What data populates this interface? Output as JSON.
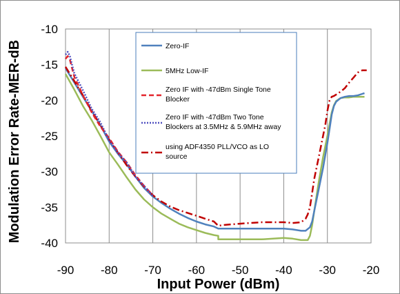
{
  "chart_data": {
    "type": "line",
    "xlabel": "Input Power (dBm)",
    "ylabel": "Modulation Error Rate-MER-dB",
    "xlim": [
      -90,
      -20
    ],
    "ylim": [
      -40,
      -10
    ],
    "x_ticks": [
      "-90",
      "-80",
      "-70",
      "-60",
      "-50",
      "-40",
      "-30",
      "-20"
    ],
    "y_ticks": [
      "-10",
      "-15",
      "-20",
      "-25",
      "-30",
      "-35",
      "-40"
    ],
    "x_tick_values": [
      -90,
      -80,
      -70,
      -60,
      -50,
      -40,
      -30,
      -20
    ],
    "y_tick_values": [
      -10,
      -15,
      -20,
      -25,
      -30,
      -35,
      -40
    ],
    "grid": "vertical",
    "legend_position": "top-center",
    "series": [
      {
        "name": "Zero-IF",
        "color": "#4f81bd",
        "dash": "solid",
        "legend_lines": [
          "Zero-IF"
        ],
        "x": [
          -90,
          -88,
          -86,
          -84,
          -82,
          -80,
          -78,
          -76,
          -74,
          -72,
          -70,
          -68,
          -66,
          -64,
          -62,
          -60,
          -58,
          -56,
          -55,
          -52,
          -50,
          -45,
          -40,
          -38,
          -36,
          -35,
          -34,
          -33.5,
          -33,
          -32.5,
          -32,
          -31,
          -30,
          -29.5,
          -29,
          -28.5,
          -28,
          -27,
          -26,
          -25,
          -24,
          -23,
          -22,
          -21.5
        ],
        "y": [
          -15.5,
          -17.5,
          -19.5,
          -21.5,
          -23.5,
          -25.8,
          -27.5,
          -29,
          -30.7,
          -32.3,
          -33.5,
          -34.4,
          -35.2,
          -35.9,
          -36.5,
          -37,
          -37.4,
          -37.7,
          -38,
          -38,
          -38,
          -38,
          -38,
          -38.1,
          -38.3,
          -38.3,
          -37.8,
          -37,
          -35.5,
          -34,
          -32.5,
          -29.5,
          -26,
          -24,
          -22,
          -20.8,
          -20.2,
          -19.7,
          -19.5,
          -19.4,
          -19.4,
          -19.3,
          -19.1,
          -19
        ]
      },
      {
        "name": "5MHz Low-IF",
        "color": "#9bbb59",
        "dash": "solid",
        "legend_lines": [
          "5MHz Low-IF"
        ],
        "x": [
          -90,
          -88,
          -86,
          -84,
          -82,
          -80,
          -78,
          -76,
          -74,
          -72,
          -70,
          -68,
          -66,
          -64,
          -62,
          -60,
          -58,
          -56,
          -55,
          -55,
          -52,
          -50,
          -45,
          -40,
          -38,
          -36,
          -35,
          -34.5,
          -34,
          -33.5,
          -33,
          -32.5,
          -32,
          -31,
          -30,
          -29.5,
          -29,
          -28.5,
          -28,
          -27,
          -26,
          -25,
          -24,
          -22,
          -21.5
        ],
        "y": [
          -16.3,
          -18.5,
          -20.8,
          -22.8,
          -25,
          -27.3,
          -29,
          -30.8,
          -32.5,
          -33.9,
          -35,
          -35.9,
          -36.6,
          -37.3,
          -37.8,
          -38.2,
          -38.6,
          -38.9,
          -39,
          -39.5,
          -39.5,
          -39.5,
          -39.5,
          -39.3,
          -39.4,
          -39.6,
          -39.6,
          -39.6,
          -39,
          -37.5,
          -35.5,
          -33.5,
          -31.5,
          -28,
          -25,
          -23.3,
          -21.7,
          -20.7,
          -20.1,
          -19.7,
          -19.6,
          -19.6,
          -19.5,
          -19.5,
          -19.5
        ]
      },
      {
        "name": "Zero IF with -47dBm Single Tone Blocker",
        "color": "#e3242b",
        "dash": "7,4",
        "legend_lines": [
          "Zero IF with -47dBm Single Tone",
          "Blocker"
        ],
        "x": [
          -90,
          -89.5,
          -89,
          -88,
          -86,
          -84,
          -82,
          -80,
          -78,
          -76,
          -74,
          -72,
          -70
        ],
        "y": [
          -14.2,
          -13.8,
          -14.3,
          -16.7,
          -19.3,
          -21.7,
          -23.7,
          -25.3,
          -27.2,
          -28.7,
          -30.5,
          -32,
          -33.3
        ]
      },
      {
        "name": "Zero IF with -47dBm Two Tone Blockers at 3.5MHz & 5.9MHz away",
        "color": "#4f4fbf",
        "dash": "2,2",
        "legend_lines": [
          "Zero IF with -47dBm Two Tone",
          "Blockers at 3.5MHz & 5.9MHz away"
        ],
        "x": [
          -90,
          -89.5,
          -89,
          -88,
          -86,
          -84,
          -82,
          -80,
          -78,
          -76,
          -74,
          -72,
          -70
        ],
        "y": [
          -13.6,
          -13.2,
          -13.8,
          -16.2,
          -18.6,
          -21.2,
          -23.1,
          -25.6,
          -27.3,
          -28.7,
          -30.7,
          -32,
          -33.4
        ]
      },
      {
        "name": "using ADF4350 PLL/VCO as LO source",
        "color": "#c00000",
        "dash": "10,4,2,4",
        "legend_lines": [
          "using ADF4350 PLL/VCO as LO",
          "source"
        ],
        "x": [
          -90,
          -88,
          -86,
          -84,
          -82,
          -80,
          -78,
          -76,
          -74,
          -72,
          -70,
          -68,
          -66,
          -64,
          -62,
          -60,
          -58,
          -56,
          -55,
          -54,
          -52,
          -50,
          -45,
          -40,
          -38,
          -36,
          -35,
          -34.5,
          -34,
          -33.5,
          -33,
          -32,
          -31,
          -30.5,
          -30,
          -29.5,
          -29,
          -28.5,
          -28,
          -27,
          -26,
          -25,
          -24,
          -23,
          -22,
          -21
        ],
        "y": [
          -15.3,
          -17.3,
          -19.3,
          -21.5,
          -23.5,
          -25.5,
          -27.3,
          -29.1,
          -30.7,
          -32.1,
          -33.3,
          -34.2,
          -34.9,
          -35.4,
          -35.8,
          -36.2,
          -36.6,
          -37,
          -37.6,
          -37.5,
          -37.4,
          -37.3,
          -37.1,
          -37.1,
          -37.2,
          -37.1,
          -36.6,
          -36,
          -35,
          -33,
          -31,
          -28,
          -25,
          -23.5,
          -21.5,
          -20,
          -19.5,
          -19.4,
          -19.2,
          -18.8,
          -18.3,
          -17.5,
          -16.8,
          -16.1,
          -15.8,
          -15.8
        ]
      }
    ]
  }
}
